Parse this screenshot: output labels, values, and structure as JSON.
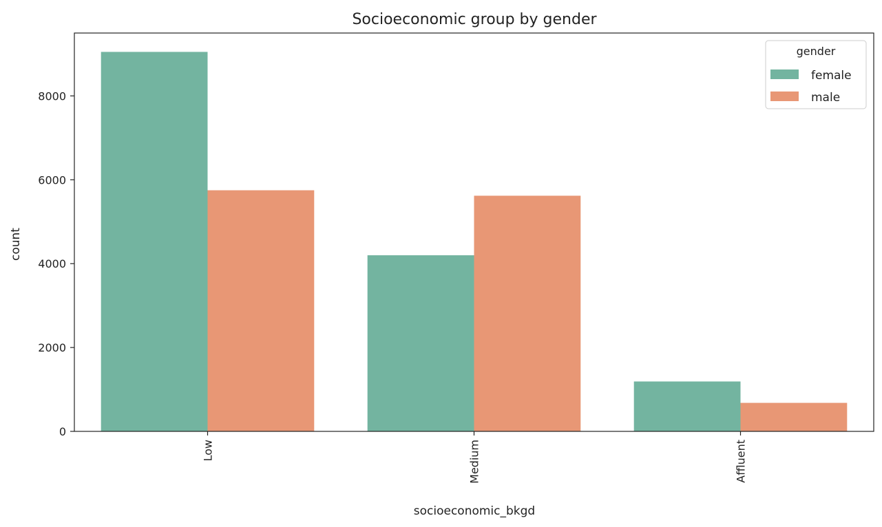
{
  "chart_data": {
    "type": "bar",
    "title": "Socioeconomic group by gender",
    "xlabel": "socioeconomic_bkgd",
    "ylabel": "count",
    "categories": [
      "Low",
      "Medium",
      "Affluent"
    ],
    "series": [
      {
        "name": "female",
        "values": [
          9050,
          4200,
          1190
        ],
        "color": "#73b4a0"
      },
      {
        "name": "male",
        "values": [
          5750,
          5620,
          680
        ],
        "color": "#e89775"
      }
    ],
    "ylim": [
      0,
      9500
    ],
    "yticks": [
      0,
      2000,
      4000,
      6000,
      8000
    ],
    "grid": false,
    "legend": {
      "title": "gender",
      "placement": "top-right"
    },
    "x_tick_rotation": "vertical"
  }
}
